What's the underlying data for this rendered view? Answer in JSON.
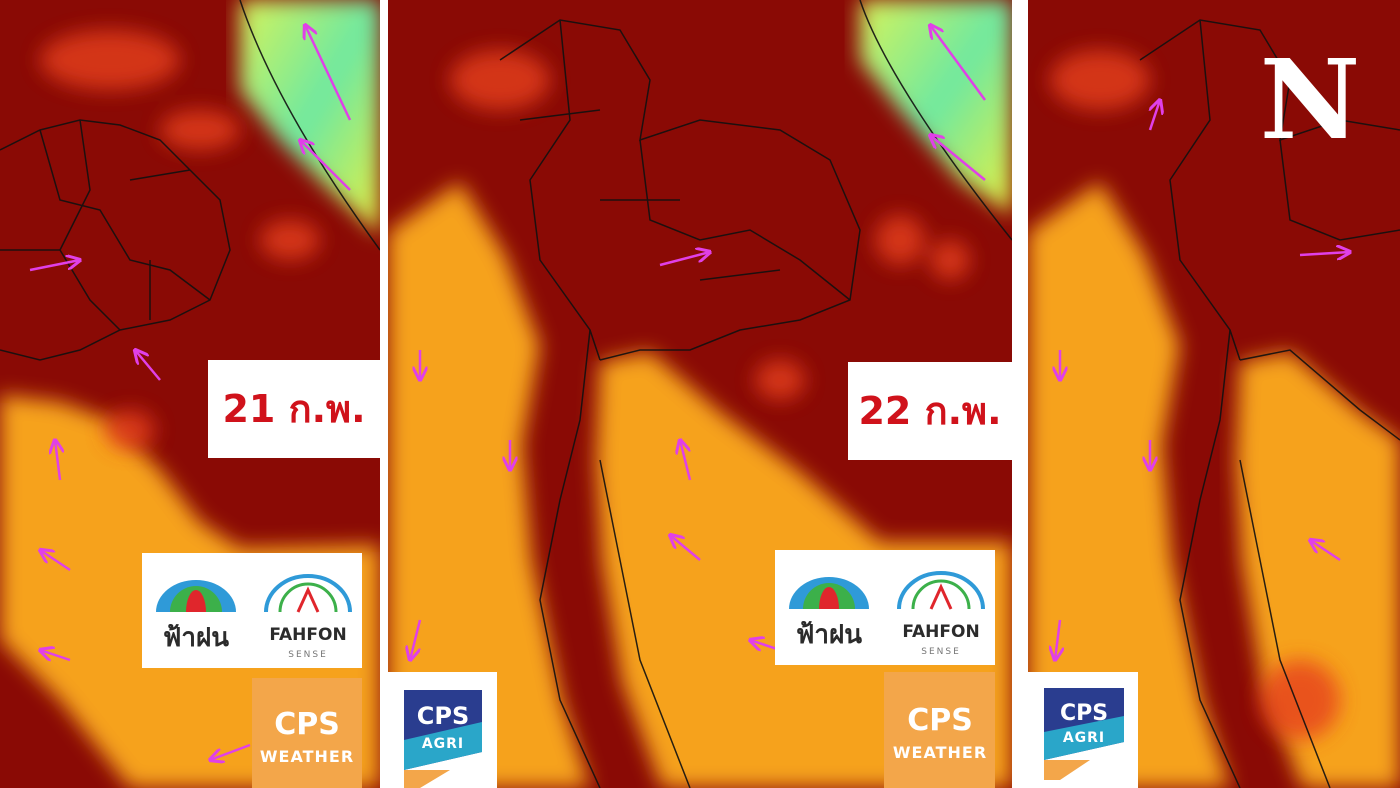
{
  "panels": [
    {
      "date": "21 ก.พ."
    },
    {
      "date": "22 ก.พ."
    }
  ],
  "logos": {
    "fahfon_thai": "ฟ้าฝน",
    "fahfon": "FAHFON",
    "sense": "SENSE",
    "cps": "CPS",
    "weather": "WEATHER",
    "agri": "AGRI"
  },
  "watermark": "N"
}
